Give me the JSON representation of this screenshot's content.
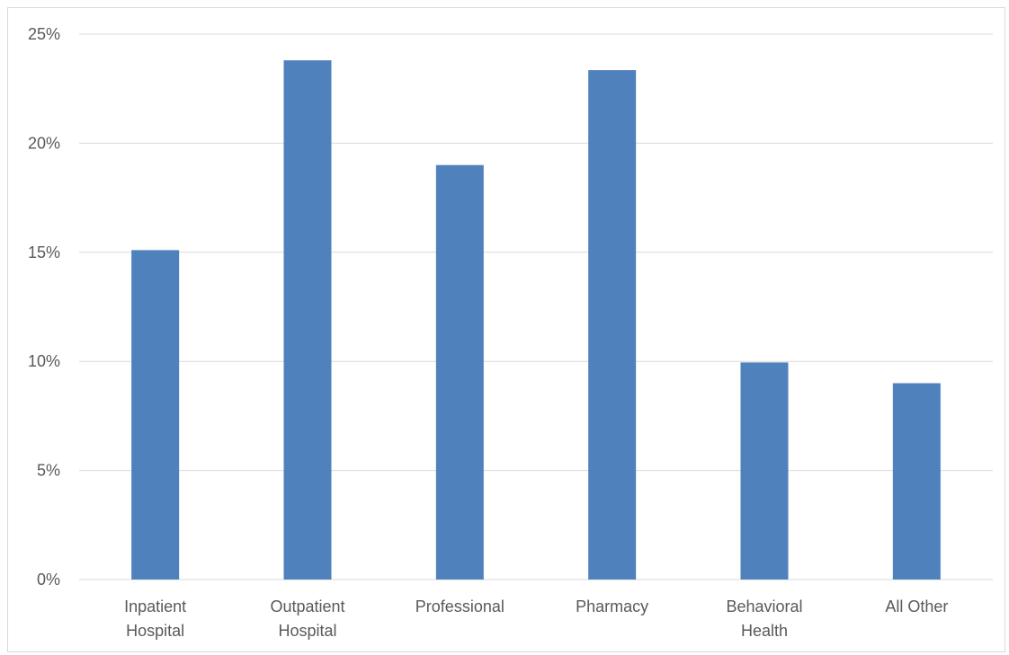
{
  "chart_data": {
    "type": "bar",
    "title": "",
    "xlabel": "",
    "ylabel": "",
    "categories": [
      [
        "Inpatient",
        "Hospital"
      ],
      [
        "Outpatient",
        "Hospital"
      ],
      [
        "Professional"
      ],
      [
        "Pharmacy"
      ],
      [
        "Behavioral",
        "Health"
      ],
      [
        "All Other"
      ]
    ],
    "values": [
      15.1,
      23.8,
      19.0,
      23.35,
      9.95,
      9.0
    ],
    "ylim": [
      0,
      25
    ],
    "yticks": [
      0,
      5,
      10,
      15,
      20,
      25
    ],
    "ytick_labels": [
      "0%",
      "5%",
      "10%",
      "15%",
      "20%",
      "25%"
    ],
    "grid": true,
    "legend": "none",
    "colors": {
      "bar": "#4f81bd",
      "grid": "#d9d9d9",
      "axis": "#d9d9d9",
      "text": "#595959"
    }
  }
}
